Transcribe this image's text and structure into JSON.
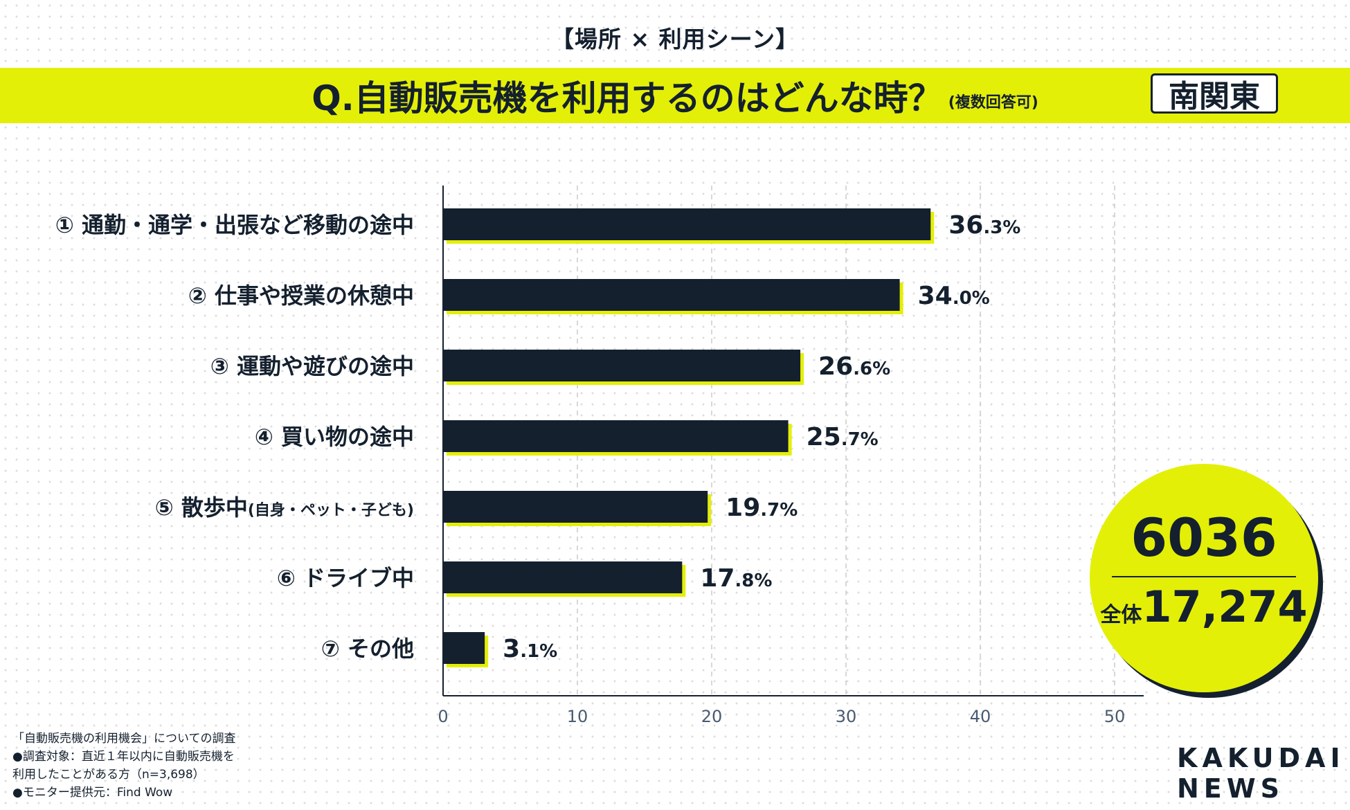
{
  "header": {
    "section_title": "【場所 × 利用シーン】",
    "question": "Q.自動販売機を利用するのはどんな時？",
    "question_note": "(複数回答可)",
    "region": "南関東"
  },
  "colors": {
    "accent": "#e4ef08",
    "bar": "#14202e",
    "grid": "#cccccc",
    "axis_text": "#4a5a70"
  },
  "chart_data": {
    "type": "bar",
    "orientation": "horizontal",
    "categories": [
      "① 通勤・通学・出張など移動の途中",
      "② 仕事や授業の休憩中",
      "③ 運動や遊びの途中",
      "④ 買い物の途中",
      "⑤ 散歩中",
      "⑥ ドライブ中",
      "⑦ その他"
    ],
    "category_notes": [
      "",
      "",
      "",
      "",
      "(自身・ペット・子ども)",
      "",
      ""
    ],
    "values": [
      36.3,
      34.0,
      26.6,
      25.7,
      19.7,
      17.8,
      3.1
    ],
    "value_labels": [
      {
        "int": "36",
        "dec": ".3%"
      },
      {
        "int": "34",
        "dec": ".0%"
      },
      {
        "int": "26",
        "dec": ".6%"
      },
      {
        "int": "25",
        "dec": ".7%"
      },
      {
        "int": "19",
        "dec": ".7%"
      },
      {
        "int": "17",
        "dec": ".8%"
      },
      {
        "int": "3",
        "dec": ".1%"
      }
    ],
    "xlim": [
      0,
      50
    ],
    "xticks": [
      0,
      10,
      20,
      30,
      40,
      50
    ],
    "grid": true,
    "xlabel": "",
    "ylabel": ""
  },
  "summary": {
    "count": "6036",
    "total_label": "全体",
    "total": "17,274"
  },
  "footnote": {
    "lines": [
      "「自動販売機の利用機会」についての調査",
      "●調査対象：直近１年以内に自動販売機を",
      "利用したことがある方（n=3,698）",
      "●モニター提供元：Find Wow"
    ]
  },
  "logo": {
    "line1": "KAKUDAI",
    "line2": "NEWS"
  }
}
